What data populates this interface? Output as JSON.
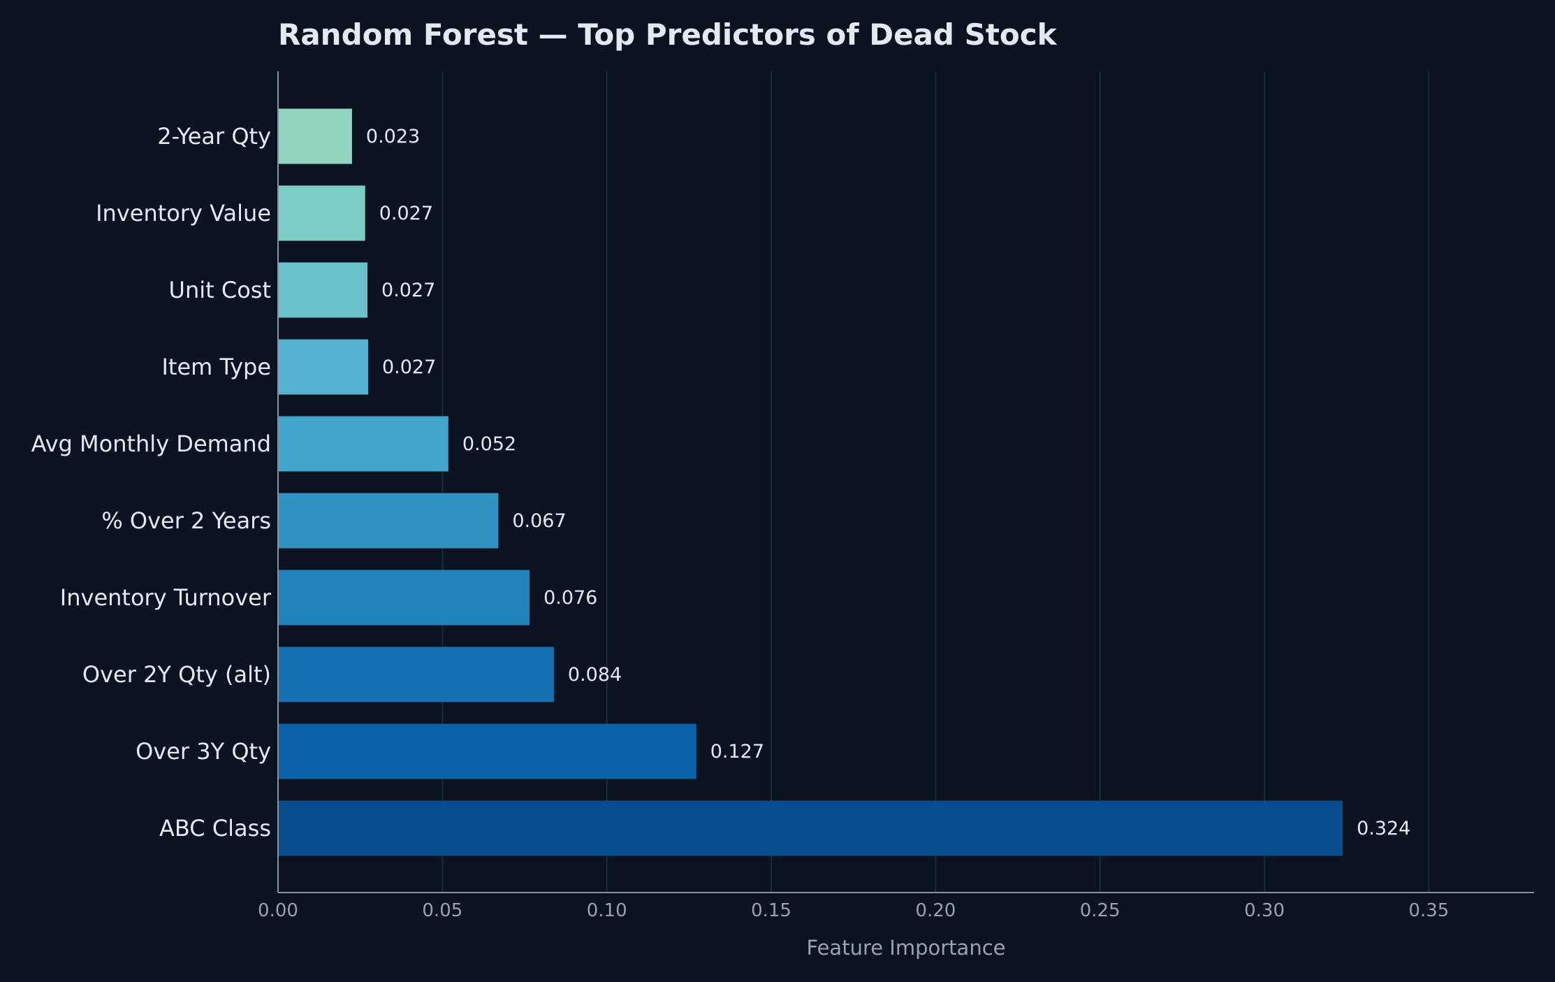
{
  "colors": {
    "background": "#0b1320",
    "title": "#e3e9f3",
    "category_text": "#e3e9f3",
    "tick_text": "#95a3b5",
    "axis_title": "#95a3b5",
    "value_text": "#e3e9f3",
    "grid": "#1e2a36",
    "axis_line": "#8593a5"
  },
  "chart_data": {
    "type": "bar",
    "orientation": "horizontal",
    "title": "Random Forest — Top Predictors of Dead Stock",
    "xlabel": "Feature Importance",
    "ylabel": "",
    "xlim": [
      0,
      0.382
    ],
    "x_ticks": [
      0.0,
      0.05,
      0.1,
      0.15,
      0.2,
      0.25,
      0.3,
      0.35
    ],
    "x_tick_labels": [
      "0.00",
      "0.05",
      "0.10",
      "0.15",
      "0.20",
      "0.25",
      "0.30",
      "0.35"
    ],
    "grid": "vertical",
    "categories": [
      "2-Year Qty",
      "Inventory Value",
      "Unit Cost",
      "Item Type",
      "Avg Monthly Demand",
      "% Over 2 Years",
      "Inventory Turnover",
      "Over 2Y Qty (alt)",
      "Over 3Y Qty",
      "ABC Class"
    ],
    "values": [
      0.0225,
      0.0265,
      0.0272,
      0.0274,
      0.0518,
      0.067,
      0.0765,
      0.0839,
      0.1272,
      0.3238
    ],
    "value_labels": [
      "0.023",
      "0.027",
      "0.027",
      "0.027",
      "0.052",
      "0.067",
      "0.076",
      "0.084",
      "0.127",
      "0.324"
    ],
    "bar_colors": [
      "#91d4c0",
      "#7bccc4",
      "#69bfca",
      "#54b3d2",
      "#41a5cb",
      "#3192c4",
      "#2283bc",
      "#1571b2",
      "#0b62a8",
      "#084e8f"
    ]
  }
}
